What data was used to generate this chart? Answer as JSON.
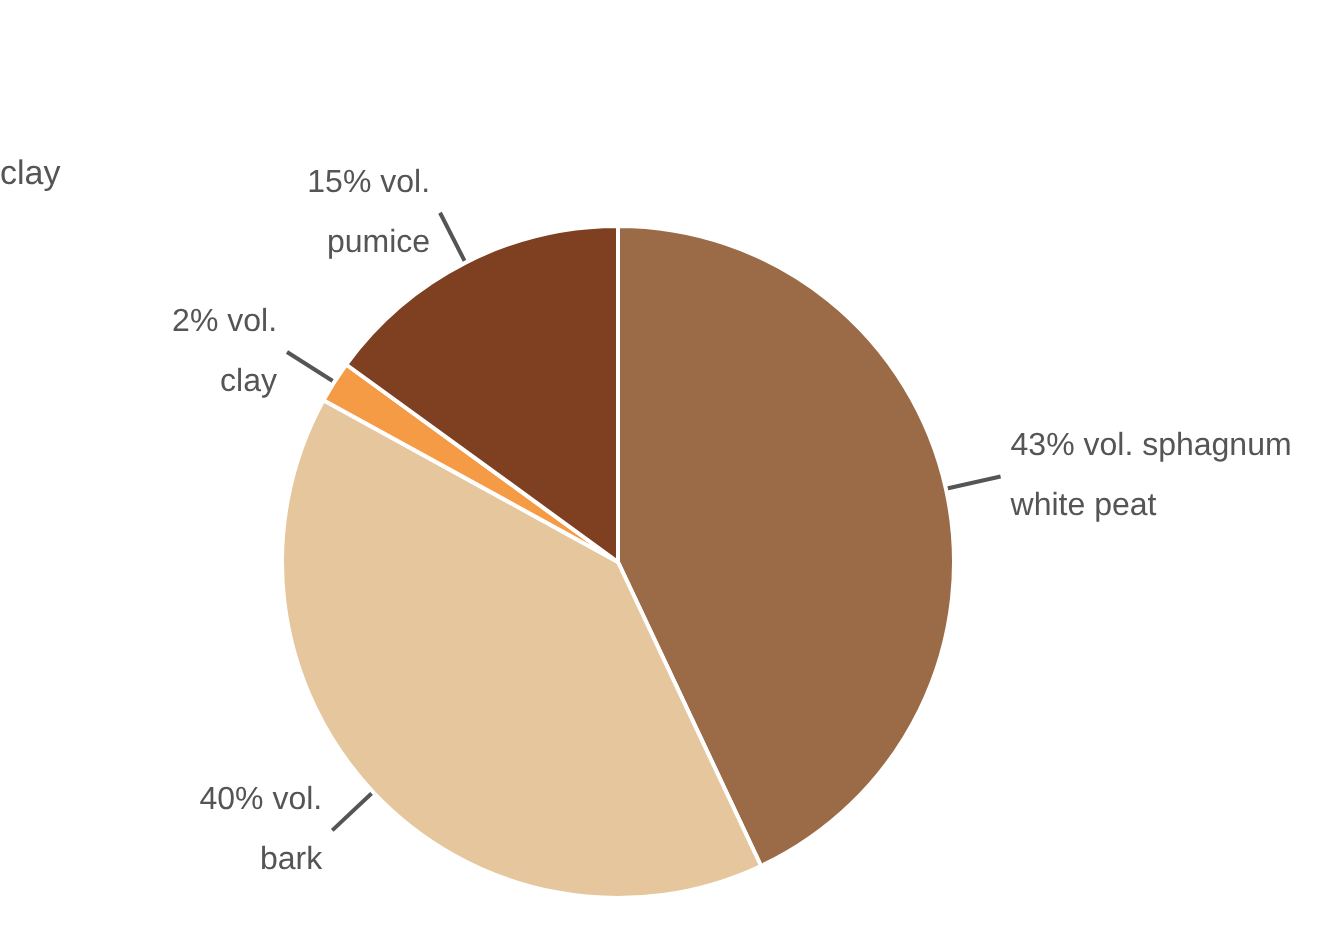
{
  "chart_data": {
    "type": "pie",
    "categories": [
      "43% vol. sphagnum\nwhite peat",
      "40% vol.\nbark",
      "2% vol.\nclay",
      "15% vol.\npumice"
    ],
    "values": [
      43,
      40,
      2,
      15
    ],
    "colors": [
      "#9b6b47",
      "#e6c69c",
      "#f59a45",
      "#7e4020"
    ],
    "annotations": [
      "clay"
    ],
    "legend": false
  }
}
